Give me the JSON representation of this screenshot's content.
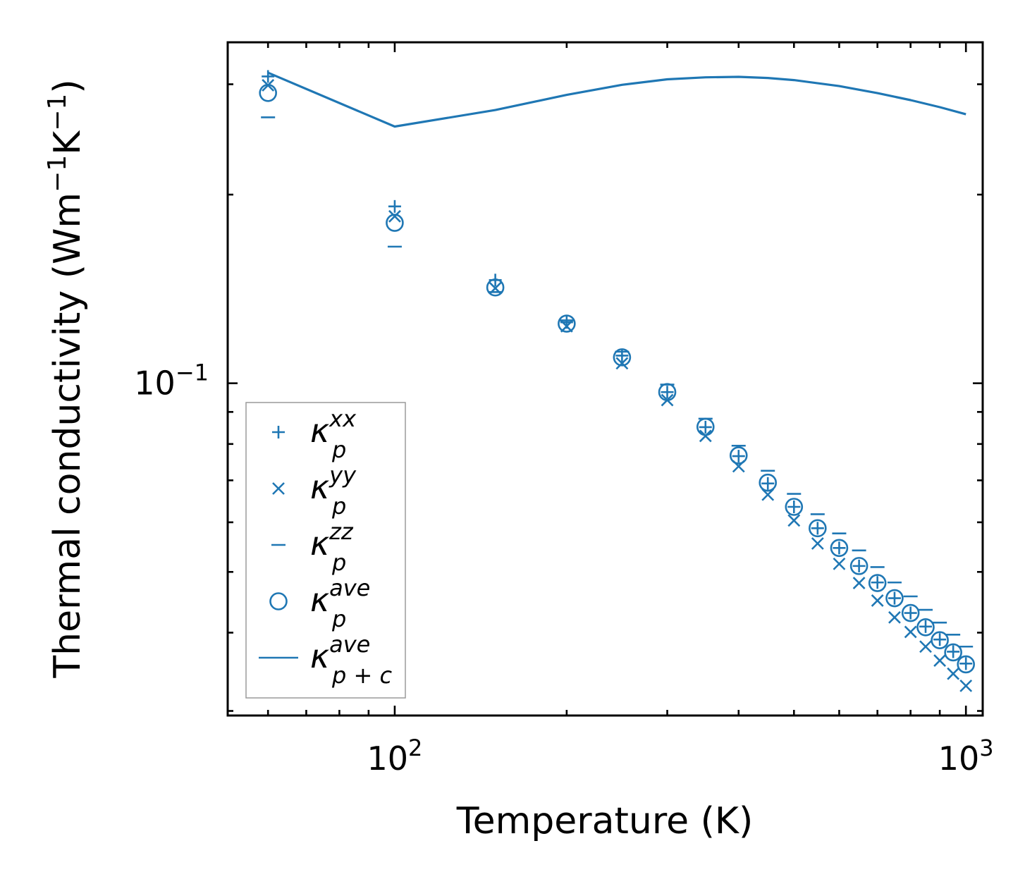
{
  "chart_data": {
    "type": "scatter",
    "title": "",
    "xlabel": "Temperature (K)",
    "ylabel": {
      "base": "Thermal conductivity (Wm",
      "sup1": "−1",
      "mid": "K",
      "sup2": "−1",
      "end": ")"
    },
    "xscale": "log",
    "yscale": "log",
    "xlim": [
      51,
      1070
    ],
    "ylim": [
      0.0295,
      0.35
    ],
    "x_tick_labels": [
      {
        "value": 100,
        "base": "10",
        "exp": "2"
      },
      {
        "value": 1000,
        "base": "10",
        "exp": "3"
      }
    ],
    "y_tick_labels": [
      {
        "value": 0.1,
        "base": "10",
        "exp": "−1"
      }
    ],
    "legend_position": "lower-left",
    "x": [
      60,
      100,
      150,
      200,
      250,
      300,
      350,
      400,
      450,
      500,
      550,
      600,
      650,
      700,
      750,
      800,
      850,
      900,
      950,
      1000
    ],
    "series": [
      {
        "name": "kappa_p^xx",
        "marker": "plus",
        "color": "#1f77b4",
        "values": [
          0.3087,
          0.1915,
          0.1461,
          0.1251,
          0.1107,
          0.0968,
          0.0851,
          0.0765,
          0.0692,
          0.0635,
          0.0587,
          0.0546,
          0.0511,
          0.0481,
          0.0454,
          0.043,
          0.0409,
          0.039,
          0.0373,
          0.0357
        ]
      },
      {
        "name": "kappa_p^yy",
        "marker": "x",
        "color": "#1f77b4",
        "values": [
          0.2989,
          0.1847,
          0.1418,
          0.1233,
          0.1076,
          0.094,
          0.0824,
          0.0737,
          0.0664,
          0.0604,
          0.0555,
          0.0515,
          0.048,
          0.045,
          0.0423,
          0.0401,
          0.038,
          0.0361,
          0.0344,
          0.0329
        ]
      },
      {
        "name": "kappa_p^zz",
        "marker": "hline",
        "color": "#1f77b4",
        "values": [
          0.2657,
          0.1652,
          0.1398,
          0.126,
          0.1123,
          0.0995,
          0.0878,
          0.0795,
          0.0725,
          0.0666,
          0.0618,
          0.0576,
          0.0541,
          0.0509,
          0.0481,
          0.0457,
          0.0435,
          0.0415,
          0.0397,
          0.038
        ]
      },
      {
        "name": "kappa_p^ave",
        "marker": "circle",
        "color": "#1f77b4",
        "values": [
          0.2906,
          0.1803,
          0.1422,
          0.1245,
          0.11,
          0.0968,
          0.0852,
          0.0767,
          0.0694,
          0.0635,
          0.0587,
          0.0546,
          0.0511,
          0.048,
          0.0454,
          0.043,
          0.0408,
          0.0389,
          0.0372,
          0.0356
        ]
      },
      {
        "name": "kappa_p+c^ave",
        "marker": "line",
        "color": "#1f77b4",
        "x": [
          60,
          100,
          150,
          200,
          250,
          300,
          350,
          400,
          450,
          500,
          600,
          700,
          800,
          900,
          1000
        ],
        "values": [
          0.313,
          0.2568,
          0.2729,
          0.2885,
          0.2994,
          0.3055,
          0.3077,
          0.3083,
          0.307,
          0.3046,
          0.298,
          0.2904,
          0.283,
          0.2758,
          0.2687
        ]
      }
    ],
    "legend": [
      {
        "marker": "plus",
        "sym": "κ",
        "sup": "xx",
        "sub": "p"
      },
      {
        "marker": "x",
        "sym": "κ",
        "sup": "yy",
        "sub": "p"
      },
      {
        "marker": "hline",
        "sym": "κ",
        "sup": "zz",
        "sub": "p"
      },
      {
        "marker": "circle",
        "sym": "κ",
        "sup": "ave",
        "sub": "p"
      },
      {
        "marker": "line",
        "sym": "κ",
        "sup": "ave",
        "sub": "p + c"
      }
    ]
  }
}
